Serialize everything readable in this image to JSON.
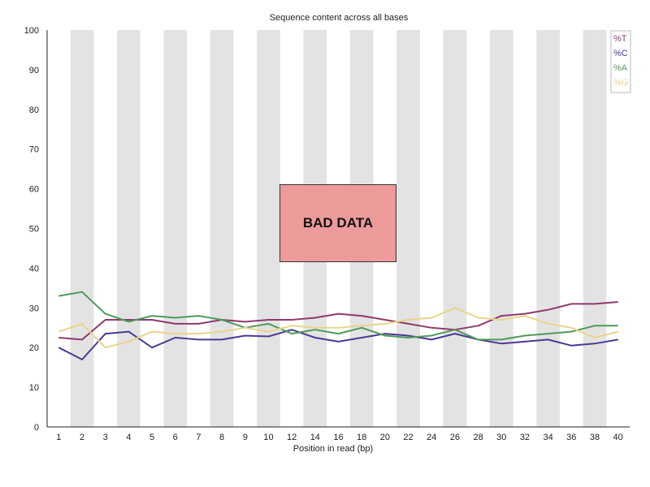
{
  "chart_data": {
    "type": "line",
    "title": "Sequence content across all bases",
    "xlabel": "Position in read (bp)",
    "ylabel": "",
    "ylim": [
      0,
      100
    ],
    "yticks": [
      0,
      10,
      20,
      30,
      40,
      50,
      60,
      70,
      80,
      90,
      100
    ],
    "categories": [
      "1",
      "2",
      "3",
      "4",
      "5",
      "6",
      "7",
      "8",
      "9",
      "10",
      "12",
      "14",
      "16",
      "18",
      "20",
      "22",
      "24",
      "26",
      "28",
      "30",
      "32",
      "34",
      "36",
      "38",
      "40"
    ],
    "grid": "alternating vertical bands",
    "legend": "top-right",
    "series": [
      {
        "name": "%T",
        "color": "#8e3a6e",
        "values": [
          22.5,
          22,
          27,
          27,
          27,
          26,
          26,
          27,
          26.5,
          27,
          27,
          27.5,
          28.5,
          28,
          27,
          26,
          25,
          24.5,
          25.5,
          28,
          28.5,
          29.5,
          31,
          31,
          31.5
        ]
      },
      {
        "name": "%C",
        "color": "#4b3a96",
        "values": [
          20,
          17,
          23.5,
          24,
          20,
          22.5,
          22,
          22,
          23,
          22.8,
          24.5,
          22.5,
          21.5,
          22.5,
          23.5,
          23,
          22,
          23.5,
          22,
          21,
          21.5,
          22,
          20.5,
          21,
          22
        ]
      },
      {
        "name": "%A",
        "color": "#4f9a5a",
        "values": [
          33,
          34,
          28.5,
          26.5,
          28,
          27.5,
          28,
          27,
          25,
          26,
          23.5,
          24.5,
          23.5,
          25,
          23,
          22.5,
          23,
          24.5,
          22,
          22,
          23,
          23.5,
          24,
          25.5,
          25.5
        ]
      },
      {
        "name": "%G",
        "color": "#e8d58a",
        "values": [
          24,
          26,
          20,
          21.5,
          24,
          23.5,
          23.5,
          24,
          25,
          24,
          25.5,
          25,
          25,
          25.5,
          26,
          27,
          27.5,
          30,
          27.5,
          27,
          28,
          26,
          25,
          22.5,
          24
        ]
      }
    ]
  }
}
